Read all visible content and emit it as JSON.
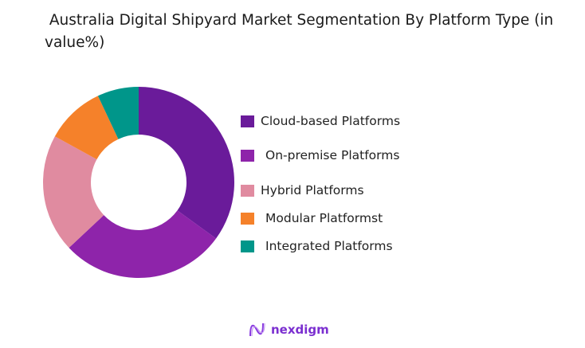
{
  "chart_data": {
    "type": "pie",
    "variant": "donut",
    "title": " Australia Digital Shipyard Market Segmentation By Platform Type (in value%)",
    "categories": [
      "Cloud-based Platforms",
      "On-premise Platforms",
      "Hybrid Platforms",
      "Modular Platformst",
      "Integrated Platforms"
    ],
    "values": [
      35,
      28,
      20,
      10,
      7
    ],
    "colors": [
      "#6A1B9A",
      "#8E24AA",
      "#E08BA0",
      "#F5812A",
      "#00968A"
    ],
    "legend_position": "right"
  },
  "branding": {
    "logo_text": "nexdigm"
  }
}
